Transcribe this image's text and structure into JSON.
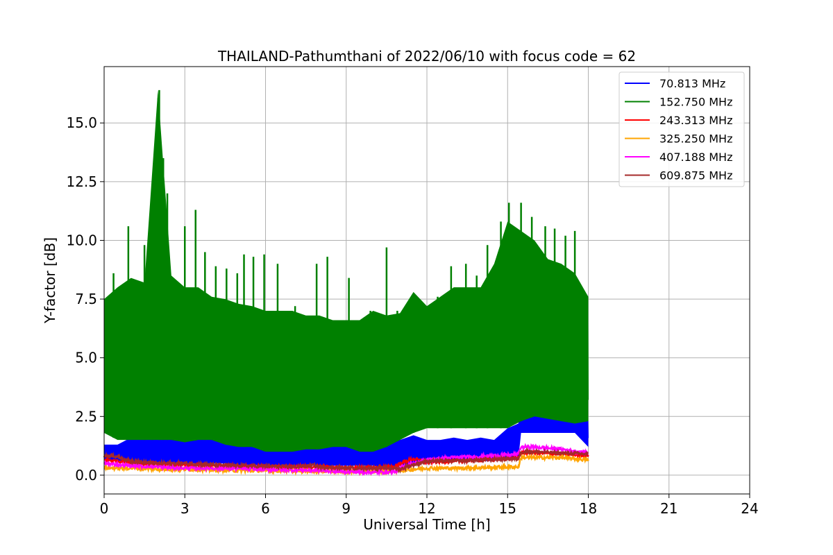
{
  "chart_data": {
    "type": "line",
    "title": "THAILAND-Pathumthani of 2022/06/10 with focus code = 62",
    "xlabel": "Universal Time [h]",
    "ylabel": "Y-factor [dB]",
    "xlim": [
      0,
      24
    ],
    "ylim": [
      -0.8,
      17.4
    ],
    "xticks": [
      0,
      3,
      6,
      9,
      12,
      15,
      18,
      21,
      24
    ],
    "yticks": [
      0.0,
      2.5,
      5.0,
      7.5,
      10.0,
      12.5,
      15.0
    ],
    "ytick_labels": [
      "0.0",
      "2.5",
      "5.0",
      "7.5",
      "10.0",
      "12.5",
      "15.0"
    ],
    "grid": true,
    "legend_position": "top-right",
    "series": [
      {
        "name": " 70.813 MHz",
        "color": "#0000ff",
        "x": [
          0,
          0.5,
          1,
          1.5,
          2,
          2.5,
          3,
          3.5,
          4,
          4.5,
          5,
          5.5,
          6,
          6.5,
          7,
          7.5,
          8,
          8.5,
          9,
          9.5,
          10,
          10.5,
          11,
          11.5,
          12,
          12.5,
          13,
          13.5,
          14,
          14.5,
          15,
          15.4,
          15.5,
          16,
          16.5,
          17,
          17.5,
          18
        ],
        "low": [
          0.7,
          0.6,
          0.6,
          0.5,
          0.5,
          0.5,
          0.5,
          0.5,
          0.5,
          0.5,
          0.4,
          0.4,
          0.4,
          0.4,
          0.4,
          0.4,
          0.4,
          0.4,
          0.4,
          0.4,
          0.4,
          0.3,
          0.4,
          0.5,
          0.6,
          0.6,
          0.6,
          0.6,
          0.6,
          0.6,
          0.7,
          0.7,
          1.8,
          1.8,
          1.8,
          1.8,
          1.8,
          1.2
        ],
        "high": [
          1.3,
          1.3,
          1.6,
          1.8,
          2.4,
          2.0,
          2.0,
          2.2,
          2.0,
          2.0,
          2.3,
          2.1,
          1.8,
          1.7,
          1.6,
          1.4,
          1.6,
          1.4,
          1.3,
          1.4,
          1.5,
          1.8,
          1.5,
          1.7,
          1.5,
          1.5,
          1.6,
          1.5,
          1.6,
          1.5,
          2.0,
          2.2,
          3.9,
          3.3,
          3.4,
          3.2,
          3.0,
          2.6
        ]
      },
      {
        "name": "152.750 MHz",
        "color": "#008000",
        "x": [
          0,
          0.5,
          1,
          1.5,
          2,
          2.5,
          3,
          3.5,
          4,
          4.5,
          5,
          5.5,
          6,
          6.5,
          7,
          7.5,
          8,
          8.5,
          9,
          9.5,
          10,
          10.5,
          11,
          11.5,
          12,
          12.5,
          13,
          13.5,
          14,
          14.5,
          15,
          15.5,
          16,
          16.5,
          17,
          17.5,
          18
        ],
        "low": [
          1.8,
          1.5,
          1.5,
          1.5,
          1.5,
          1.5,
          1.4,
          1.5,
          1.5,
          1.3,
          1.2,
          1.2,
          1.0,
          1.0,
          1.0,
          1.1,
          1.1,
          1.2,
          1.2,
          1.0,
          1.0,
          1.2,
          1.5,
          1.8,
          2.0,
          2.0,
          2.0,
          2.0,
          2.0,
          2.0,
          2.0,
          2.3,
          2.5,
          2.4,
          2.3,
          2.2,
          2.3
        ],
        "high": [
          7.5,
          8.0,
          8.4,
          8.2,
          16.4,
          8.5,
          8.0,
          8.0,
          7.6,
          7.5,
          7.3,
          7.2,
          7.0,
          7.0,
          7.0,
          6.8,
          6.8,
          6.6,
          6.6,
          6.6,
          7.0,
          6.8,
          6.9,
          7.8,
          7.2,
          7.6,
          8.0,
          8.0,
          8.0,
          9.0,
          10.8,
          10.4,
          10.0,
          9.2,
          9.0,
          8.6,
          7.6
        ],
        "spikes": [
          [
            0.35,
            8.6
          ],
          [
            0.9,
            10.6
          ],
          [
            1.5,
            9.8
          ],
          [
            1.8,
            10.4
          ],
          [
            2.05,
            16.4
          ],
          [
            2.2,
            13.5
          ],
          [
            2.35,
            12.0
          ],
          [
            3.0,
            10.6
          ],
          [
            3.4,
            11.3
          ],
          [
            3.75,
            9.5
          ],
          [
            4.15,
            8.9
          ],
          [
            4.55,
            8.8
          ],
          [
            4.95,
            8.6
          ],
          [
            5.2,
            9.4
          ],
          [
            5.55,
            9.3
          ],
          [
            5.95,
            9.4
          ],
          [
            6.45,
            9.0
          ],
          [
            7.1,
            7.2
          ],
          [
            7.9,
            9.0
          ],
          [
            8.3,
            9.3
          ],
          [
            9.1,
            8.4
          ],
          [
            9.9,
            7.0
          ],
          [
            10.5,
            9.7
          ],
          [
            10.9,
            7.0
          ],
          [
            11.5,
            7.4
          ],
          [
            12.4,
            7.6
          ],
          [
            12.9,
            8.9
          ],
          [
            13.45,
            9.0
          ],
          [
            13.85,
            8.5
          ],
          [
            14.25,
            9.8
          ],
          [
            14.75,
            10.8
          ],
          [
            15.05,
            11.6
          ],
          [
            15.5,
            11.6
          ],
          [
            15.9,
            11.0
          ],
          [
            16.4,
            10.6
          ],
          [
            16.75,
            10.5
          ],
          [
            17.15,
            10.2
          ],
          [
            17.5,
            10.4
          ],
          [
            17.9,
            7.5
          ]
        ]
      },
      {
        "name": "243.313 MHz",
        "color": "#ff0000",
        "x": [
          0,
          1,
          2,
          3,
          4,
          5,
          6,
          7,
          8,
          9,
          10,
          10.8,
          11,
          11.5,
          12,
          13,
          14,
          15,
          15.4,
          15.5,
          16,
          17,
          18
        ],
        "y": [
          0.65,
          0.55,
          0.45,
          0.45,
          0.4,
          0.38,
          0.35,
          0.35,
          0.35,
          0.3,
          0.32,
          0.35,
          0.5,
          0.7,
          0.55,
          0.6,
          0.65,
          0.7,
          0.75,
          0.95,
          0.95,
          0.9,
          0.85
        ]
      },
      {
        "name": "325.250 MHz",
        "color": "#ffa500",
        "x": [
          0,
          1,
          2,
          3,
          4,
          5,
          6,
          7,
          8,
          9,
          10,
          10.8,
          11,
          11.5,
          12,
          13,
          14,
          15,
          15.4,
          15.5,
          16,
          17,
          18
        ],
        "y": [
          0.3,
          0.3,
          0.25,
          0.25,
          0.22,
          0.2,
          0.2,
          0.18,
          0.18,
          0.15,
          0.15,
          0.18,
          0.2,
          0.25,
          0.3,
          0.3,
          0.32,
          0.35,
          0.35,
          0.75,
          0.75,
          0.75,
          0.65
        ]
      },
      {
        "name": "407.188 MHz",
        "color": "#ff00ff",
        "x": [
          0,
          1,
          2,
          3,
          4,
          5,
          6,
          7,
          8,
          9,
          10,
          10.8,
          11,
          11.5,
          12,
          13,
          14,
          15,
          15.4,
          15.5,
          16,
          17,
          18
        ],
        "y": [
          0.5,
          0.4,
          0.35,
          0.3,
          0.3,
          0.28,
          0.25,
          0.22,
          0.2,
          0.15,
          0.12,
          0.15,
          0.3,
          0.5,
          0.65,
          0.75,
          0.8,
          0.85,
          0.9,
          1.2,
          1.2,
          1.1,
          0.95
        ]
      },
      {
        "name": "609.875 MHz",
        "color": "#a52a2a",
        "x": [
          0,
          0.3,
          1,
          2,
          3,
          4,
          5,
          6,
          7,
          7.8,
          8,
          9,
          10,
          10.8,
          11,
          11.5,
          12,
          13,
          14,
          15,
          15.4,
          15.5,
          16,
          17,
          18
        ],
        "y": [
          0.8,
          0.85,
          0.6,
          0.5,
          0.5,
          0.45,
          0.4,
          0.38,
          0.35,
          0.42,
          0.35,
          0.3,
          0.3,
          0.3,
          0.25,
          0.45,
          0.6,
          0.6,
          0.65,
          0.7,
          0.7,
          1.0,
          1.0,
          0.95,
          0.9
        ]
      }
    ]
  }
}
